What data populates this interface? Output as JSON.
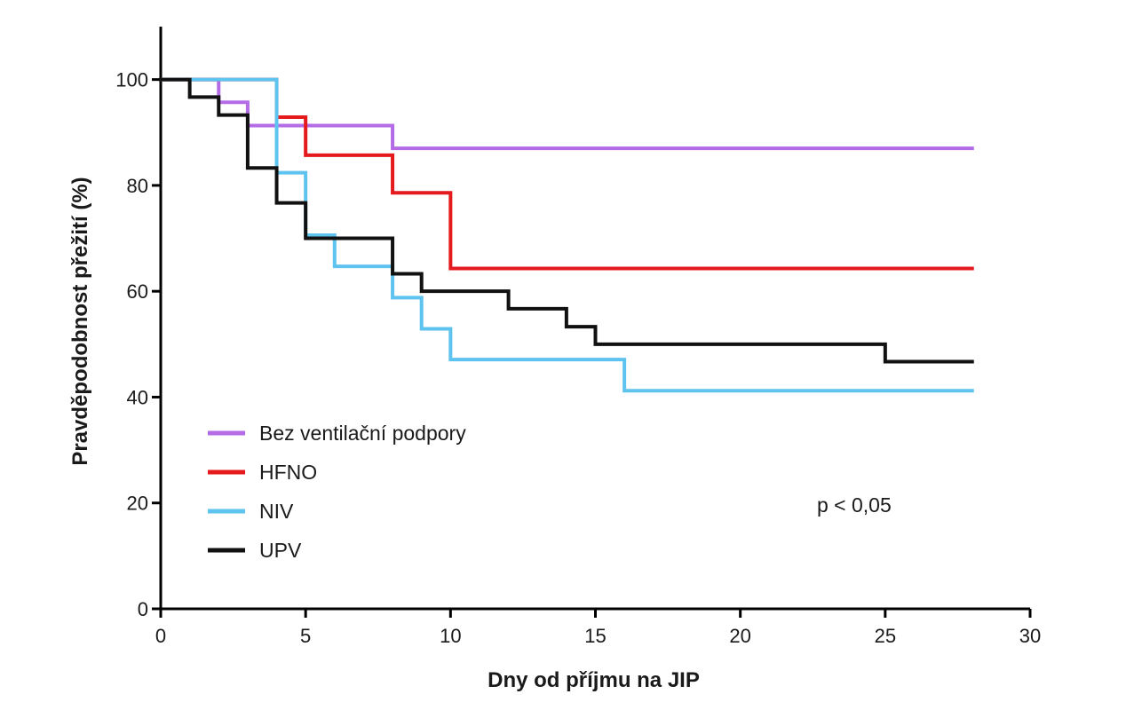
{
  "chart_data": {
    "type": "line",
    "step": true,
    "xlabel": "Dny od příjmu na JIP",
    "ylabel": "Pravděpodobnost přežití (%)",
    "xlim": [
      0,
      30
    ],
    "ylim": [
      0,
      110
    ],
    "xticks": [
      0,
      5,
      10,
      15,
      20,
      25,
      30
    ],
    "yticks": [
      0,
      20,
      40,
      60,
      80,
      100
    ],
    "grid": false,
    "legend_position": "bottom-left",
    "annotation": "p < 0,05",
    "series": [
      {
        "name": "Bez ventilační podpory",
        "color": "#b36be6",
        "x": [
          0,
          2,
          3,
          8,
          28
        ],
        "y": [
          100,
          95.7,
          91.3,
          87,
          87
        ]
      },
      {
        "name": "HFNO",
        "color": "#e41a1c",
        "x": [
          0,
          4,
          5,
          8,
          10,
          28
        ],
        "y": [
          100,
          92.9,
          85.7,
          78.6,
          64.3,
          64.3
        ]
      },
      {
        "name": "NIV",
        "color": "#5ec3ee",
        "x": [
          0,
          4,
          5,
          6,
          8,
          9,
          10,
          16,
          28
        ],
        "y": [
          100,
          82.4,
          70.6,
          64.7,
          58.8,
          52.9,
          47.1,
          41.2,
          41.2
        ]
      },
      {
        "name": "UPV",
        "color": "#111111",
        "x": [
          0,
          1,
          2,
          3,
          4,
          5,
          8,
          9,
          12,
          14,
          15,
          25,
          28
        ],
        "y": [
          100,
          96.7,
          93.3,
          83.3,
          76.7,
          70,
          63.3,
          60,
          56.7,
          53.3,
          50,
          46.7,
          46.7
        ]
      }
    ]
  }
}
